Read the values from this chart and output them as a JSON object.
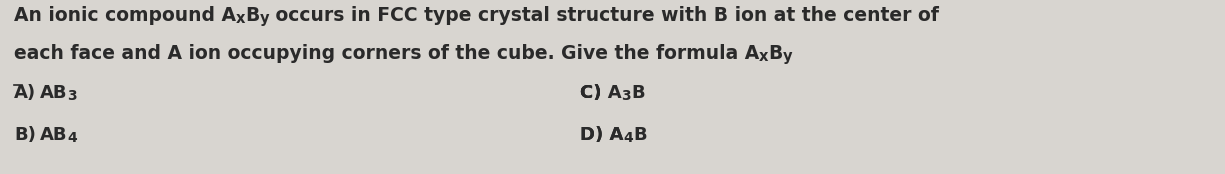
{
  "background_color": "#d8d5d0",
  "text_color": "#2a2a2a",
  "font_size_body": 13.5,
  "font_size_options": 13.0,
  "font_weight": "bold",
  "line1_plain": "An ionic compound A",
  "line1_x": "x",
  "line1_mid": "B",
  "line1_y": "y",
  "line1_rest": " occurs in FCC type crystal structure with B ion at the center of",
  "line2_plain": "each face and A ion occupying corners of the cube. Give the formula A",
  "line2_x": "x",
  "line2_mid": "B",
  "line2_y": "y",
  "optA_label": "A)",
  "optA_main": "AB",
  "optA_sub": "3",
  "optB_label": "B)",
  "optB_main": "AB",
  "optB_sub": "4",
  "optC_label": "C) ",
  "optC_main1": "A",
  "optC_sub": "3",
  "optC_main2": "B",
  "optD_label": "D) ",
  "optD_main1": "A",
  "optD_sub": "4",
  "optD_main2": "B",
  "underline_A": true
}
